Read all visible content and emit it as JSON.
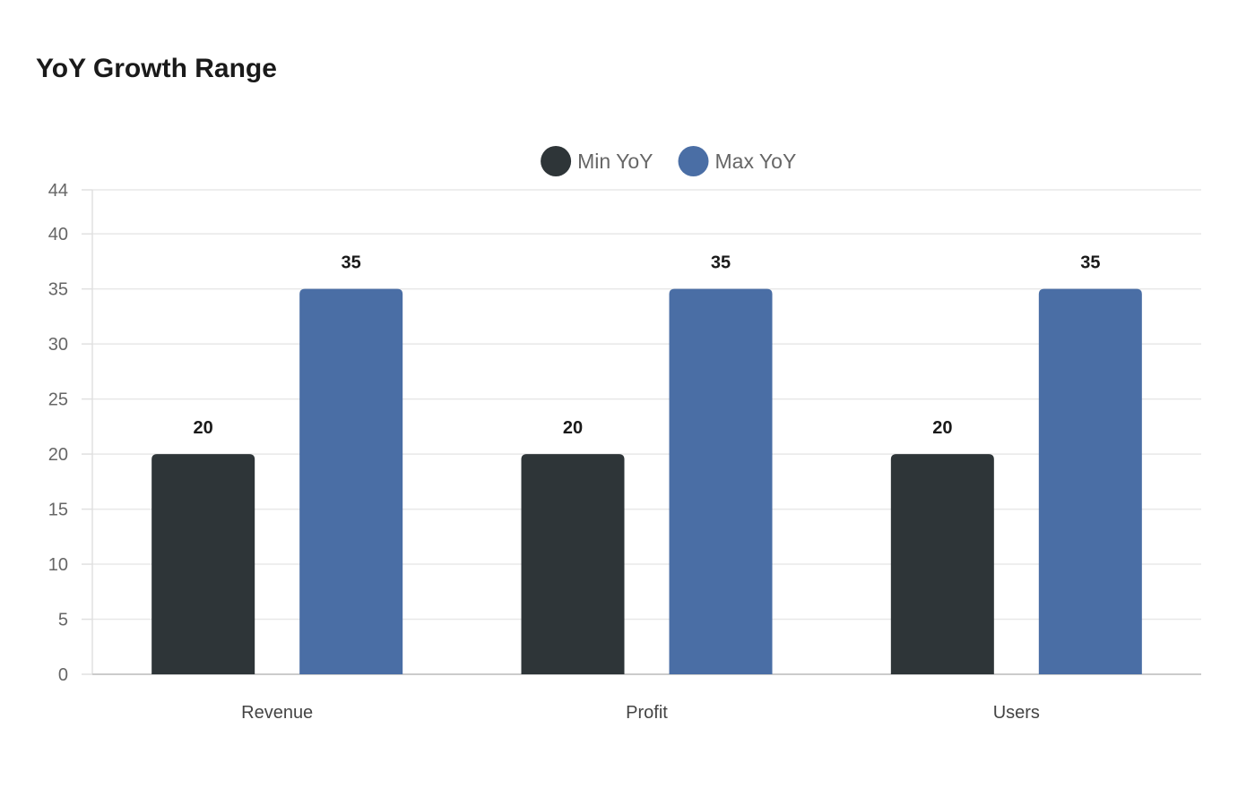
{
  "chart_data": {
    "type": "bar",
    "title": "YoY Growth Range",
    "categories": [
      "Revenue",
      "Profit",
      "Users"
    ],
    "series": [
      {
        "name": "Min YoY",
        "values": [
          20,
          20,
          20
        ],
        "color": "#2e3538"
      },
      {
        "name": "Max YoY",
        "values": [
          35,
          35,
          35
        ],
        "color": "#4a6ea5"
      }
    ],
    "ylim": [
      0,
      44
    ],
    "yticks": [
      0,
      5,
      10,
      15,
      20,
      25,
      30,
      35,
      40,
      44
    ],
    "xlabel": "",
    "ylabel": "",
    "grid": true,
    "legend": "top-center"
  }
}
